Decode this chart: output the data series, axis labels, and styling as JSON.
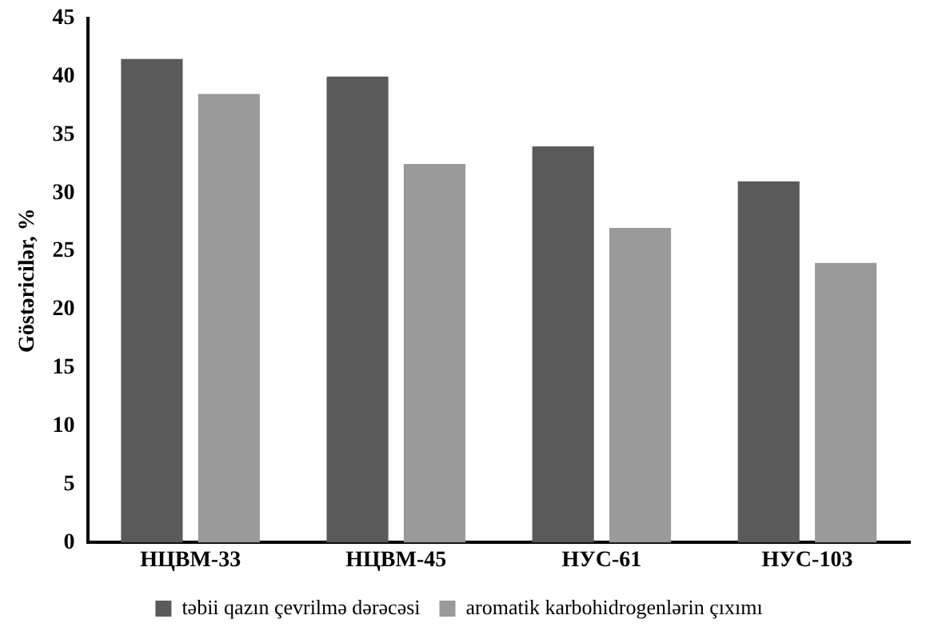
{
  "chart_data": {
    "type": "bar",
    "ylabel": "Göstəricilər, %",
    "categories": [
      "НЦВМ-33",
      "НЦВМ-45",
      "НУС-61",
      "НУС-103"
    ],
    "series": [
      {
        "name": "təbii qazın çevrilmə dərəcəsi",
        "color": "#5a5a5a",
        "values": [
          41.5,
          40,
          34,
          31
        ]
      },
      {
        "name": "aromatik karbohidrogenlərin çıxımı",
        "color": "#9a9a9a",
        "values": [
          38.5,
          32.5,
          27,
          24
        ]
      }
    ],
    "ylim": [
      0,
      45
    ],
    "yticks": [
      0,
      5,
      10,
      15,
      20,
      25,
      30,
      35,
      40,
      45
    ],
    "grid": false,
    "legend": "bottom"
  }
}
